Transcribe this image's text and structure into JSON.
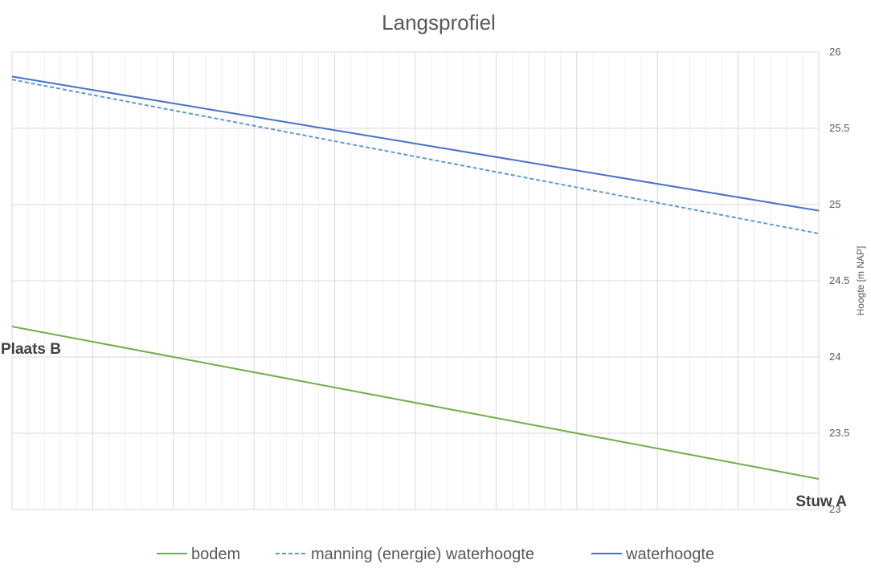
{
  "chart_data": {
    "type": "line",
    "title": "Langsprofiel",
    "ylabel": "Hoogte [m NAP]",
    "y_axis_position": "right",
    "ylim": [
      23,
      26
    ],
    "y_ticks": [
      "23",
      "23.5",
      "24",
      "24.5",
      "25",
      "25.5",
      "26"
    ],
    "x": [
      0,
      1
    ],
    "grid": true,
    "legend_position": "bottom",
    "series": [
      {
        "name": "bodem",
        "color": "#70ad47",
        "dash": "solid",
        "values": [
          24.2,
          23.2
        ]
      },
      {
        "name": "manning (energie) waterhoogte",
        "color": "#5b9bd5",
        "dash": "dashed",
        "values": [
          25.82,
          24.81
        ]
      },
      {
        "name": "waterhoogte",
        "color": "#4472c4",
        "dash": "solid",
        "values": [
          25.84,
          24.96
        ]
      }
    ],
    "annotations": [
      {
        "text": "Plaats B",
        "at": "start"
      },
      {
        "text": "Stuw A",
        "at": "end"
      }
    ]
  }
}
